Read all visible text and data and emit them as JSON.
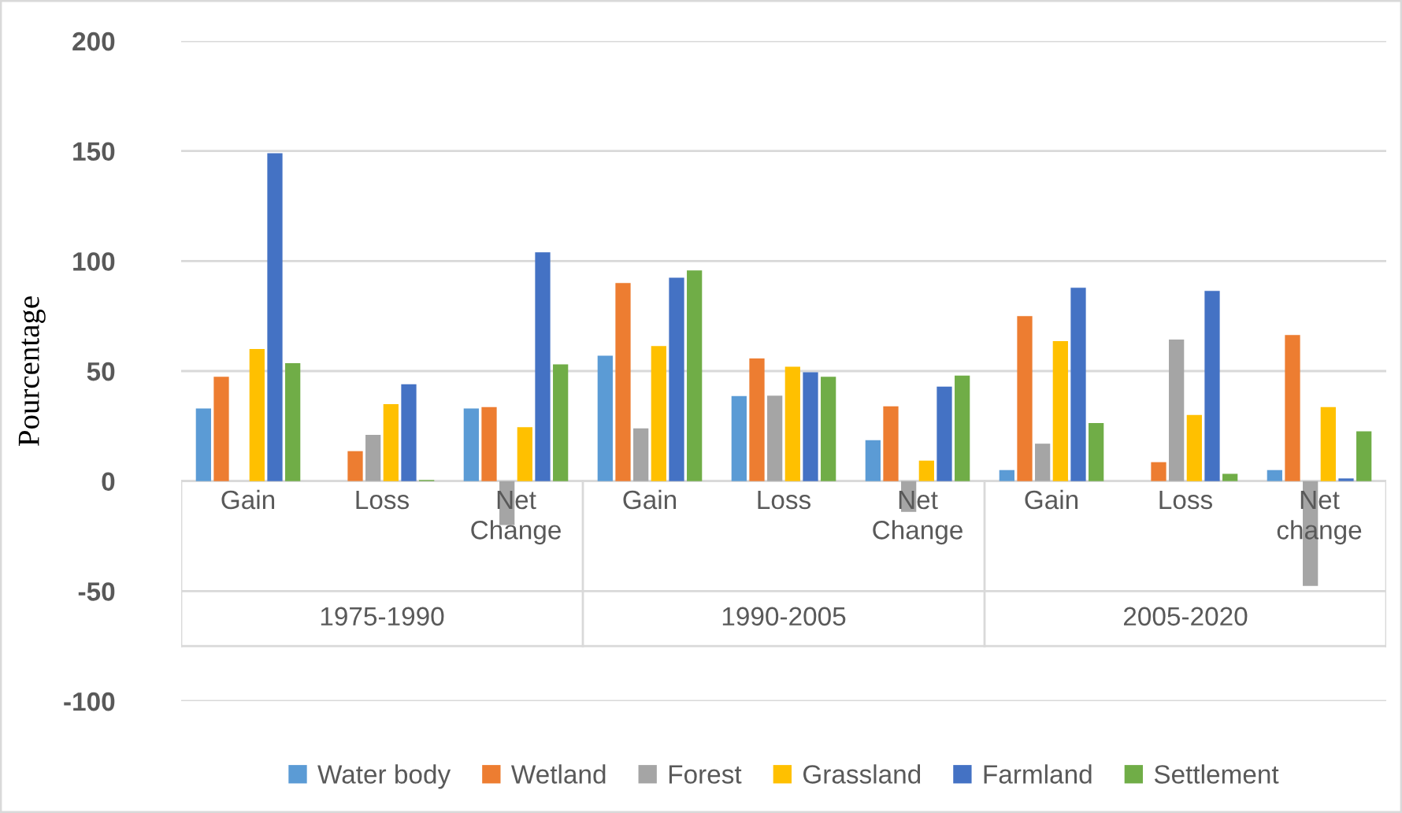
{
  "chart_data": {
    "type": "bar",
    "ylabel": "Pourcentage",
    "categories": [
      "Gain",
      "Loss",
      "Net Change",
      "Gain",
      "Loss",
      "Net Change",
      "Gain",
      "Loss",
      "Net change"
    ],
    "annotations": [
      "1975-1990",
      "1990-2005",
      "2005-2020"
    ],
    "series": [
      {
        "name": "Water body",
        "color": "#5b9bd5",
        "values": [
          33,
          0,
          33,
          57,
          38.6,
          18.6,
          5,
          0,
          5
        ]
      },
      {
        "name": "Wetland",
        "color": "#ed7d31",
        "values": [
          47.4,
          13.6,
          33.6,
          90,
          55.7,
          34,
          75,
          8.6,
          66.4
        ]
      },
      {
        "name": "Forest",
        "color": "#a5a5a5",
        "values": [
          null,
          21,
          -20,
          24,
          38.8,
          -14,
          17,
          64.3,
          -47.6
        ]
      },
      {
        "name": "Grassland",
        "color": "#ffc000",
        "values": [
          60,
          35,
          24.5,
          61.4,
          52,
          9.3,
          63.6,
          30,
          33.6
        ]
      },
      {
        "name": "Farmland",
        "color": "#4472c4",
        "values": [
          149,
          44,
          104,
          92.4,
          49.5,
          42.9,
          87.9,
          86.4,
          1.2
        ]
      },
      {
        "name": "Settlement",
        "color": "#70ad47",
        "values": [
          53.6,
          0.5,
          53,
          95.7,
          47.4,
          47.9,
          26.4,
          3.3,
          22.6
        ]
      }
    ],
    "ylim": [
      -100,
      200
    ],
    "yticks": [
      -100,
      -50,
      0,
      50,
      100,
      150,
      200
    ],
    "grid": "y",
    "legend": "bottom"
  }
}
